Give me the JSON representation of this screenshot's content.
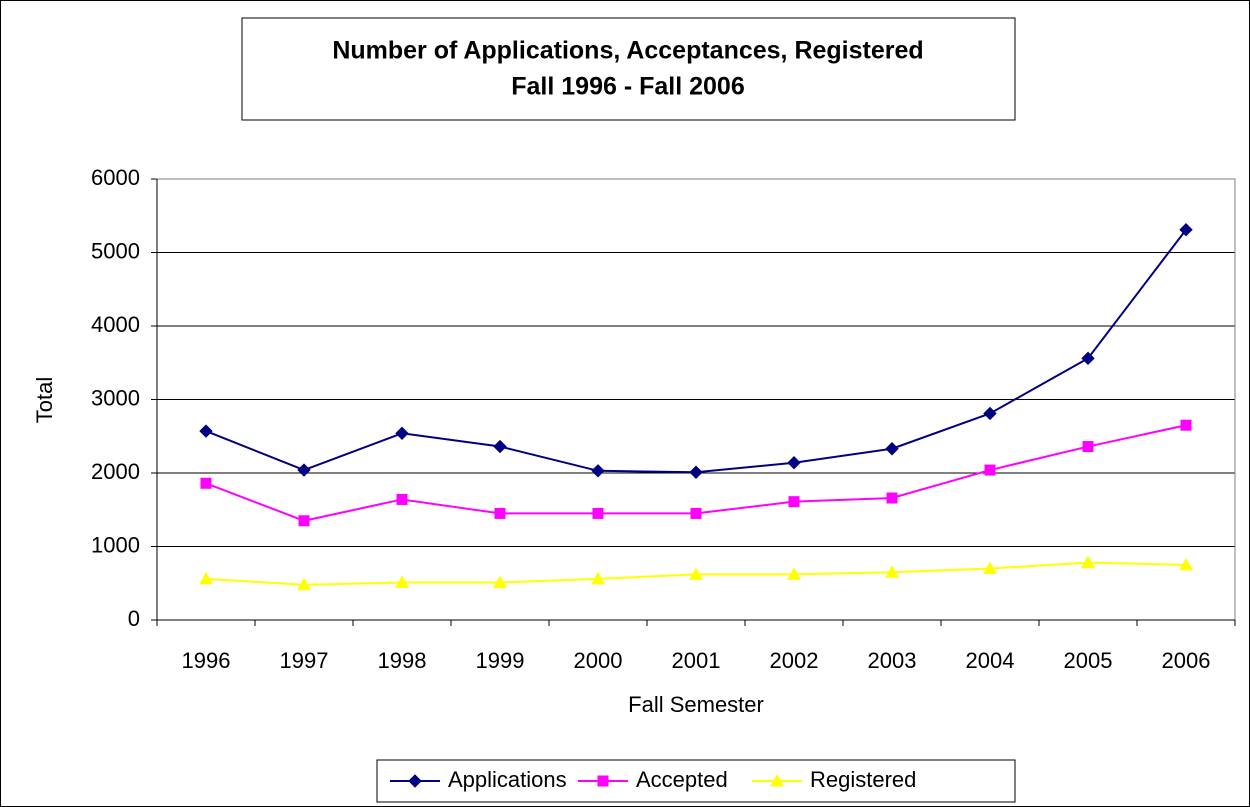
{
  "chart_data": {
    "type": "line",
    "title": "Number of Applications, Acceptances, Registered",
    "subtitle": "Fall 1996 - Fall 2006",
    "x_label": "Fall Semester",
    "y_label": "Total",
    "categories": [
      "1996",
      "1997",
      "1998",
      "1999",
      "2000",
      "2001",
      "2002",
      "2003",
      "2004",
      "2005",
      "2006"
    ],
    "series": [
      {
        "name": "Applications",
        "color": "#000080",
        "marker": "diamond",
        "values": [
          2570,
          2040,
          2540,
          2360,
          2030,
          2010,
          2140,
          2330,
          2810,
          3560,
          5310
        ]
      },
      {
        "name": "Accepted",
        "color": "#ff00ff",
        "marker": "square",
        "values": [
          1860,
          1350,
          1640,
          1450,
          1450,
          1450,
          1610,
          1660,
          2040,
          2360,
          2650
        ]
      },
      {
        "name": "Registered",
        "color": "#ffff00",
        "marker": "triangle",
        "values": [
          560,
          480,
          510,
          510,
          560,
          620,
          620,
          650,
          700,
          780,
          750
        ]
      }
    ],
    "ylim": [
      0,
      6000
    ],
    "yticks": [
      0,
      1000,
      2000,
      3000,
      4000,
      5000,
      6000
    ],
    "grid": true,
    "legend": "bottom"
  }
}
